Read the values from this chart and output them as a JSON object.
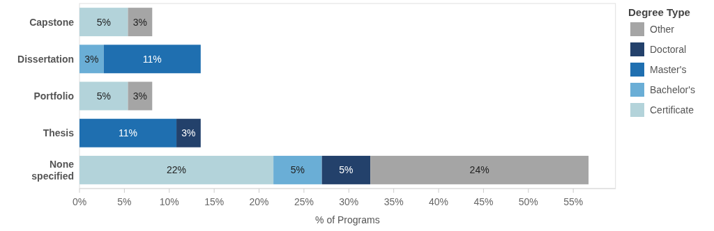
{
  "chart_data": {
    "type": "bar",
    "orientation": "horizontal",
    "stacked": true,
    "xlabel": "% of Programs",
    "legend_title": "Degree Type",
    "legend": "top right",
    "grid": false,
    "categories": [
      "Capstone",
      "Dissertation",
      "Portfolio",
      "Thesis",
      "None specified"
    ],
    "xlim": [
      0,
      59.7
    ],
    "xticks": [
      {
        "value": 0,
        "label": "0%"
      },
      {
        "value": 5,
        "label": "5%"
      },
      {
        "value": 10,
        "label": "10%"
      },
      {
        "value": 15,
        "label": "15%"
      },
      {
        "value": 20,
        "label": "20%"
      },
      {
        "value": 25,
        "label": "25%"
      },
      {
        "value": 30,
        "label": "30%"
      },
      {
        "value": 35,
        "label": "35%"
      },
      {
        "value": 40,
        "label": "40%"
      },
      {
        "value": 45,
        "label": "45%"
      },
      {
        "value": 50,
        "label": "50%"
      },
      {
        "value": 55,
        "label": "55%"
      }
    ],
    "series": [
      {
        "name": "Certificate",
        "color": "#b3d3da",
        "values": [
          5.4,
          null,
          5.4,
          null,
          21.6
        ],
        "value_labels": [
          "5%",
          null,
          "5%",
          null,
          "22%"
        ]
      },
      {
        "name": "Bachelor's",
        "color": "#6aaed6",
        "values": [
          null,
          2.7,
          null,
          null,
          5.4
        ],
        "value_labels": [
          null,
          "3%",
          null,
          null,
          "5%"
        ]
      },
      {
        "name": "Master's",
        "color": "#1f6fb0",
        "values": [
          null,
          10.8,
          null,
          10.8,
          null
        ],
        "value_labels": [
          null,
          "11%",
          null,
          "11%",
          null
        ]
      },
      {
        "name": "Doctoral",
        "color": "#23416b",
        "values": [
          null,
          null,
          null,
          2.7,
          5.4
        ],
        "value_labels": [
          null,
          null,
          null,
          "3%",
          "5%"
        ]
      },
      {
        "name": "Other",
        "color": "#a5a5a5",
        "values": [
          2.7,
          null,
          2.7,
          null,
          24.3
        ],
        "value_labels": [
          "3%",
          null,
          "3%",
          null,
          "24%"
        ]
      }
    ]
  }
}
